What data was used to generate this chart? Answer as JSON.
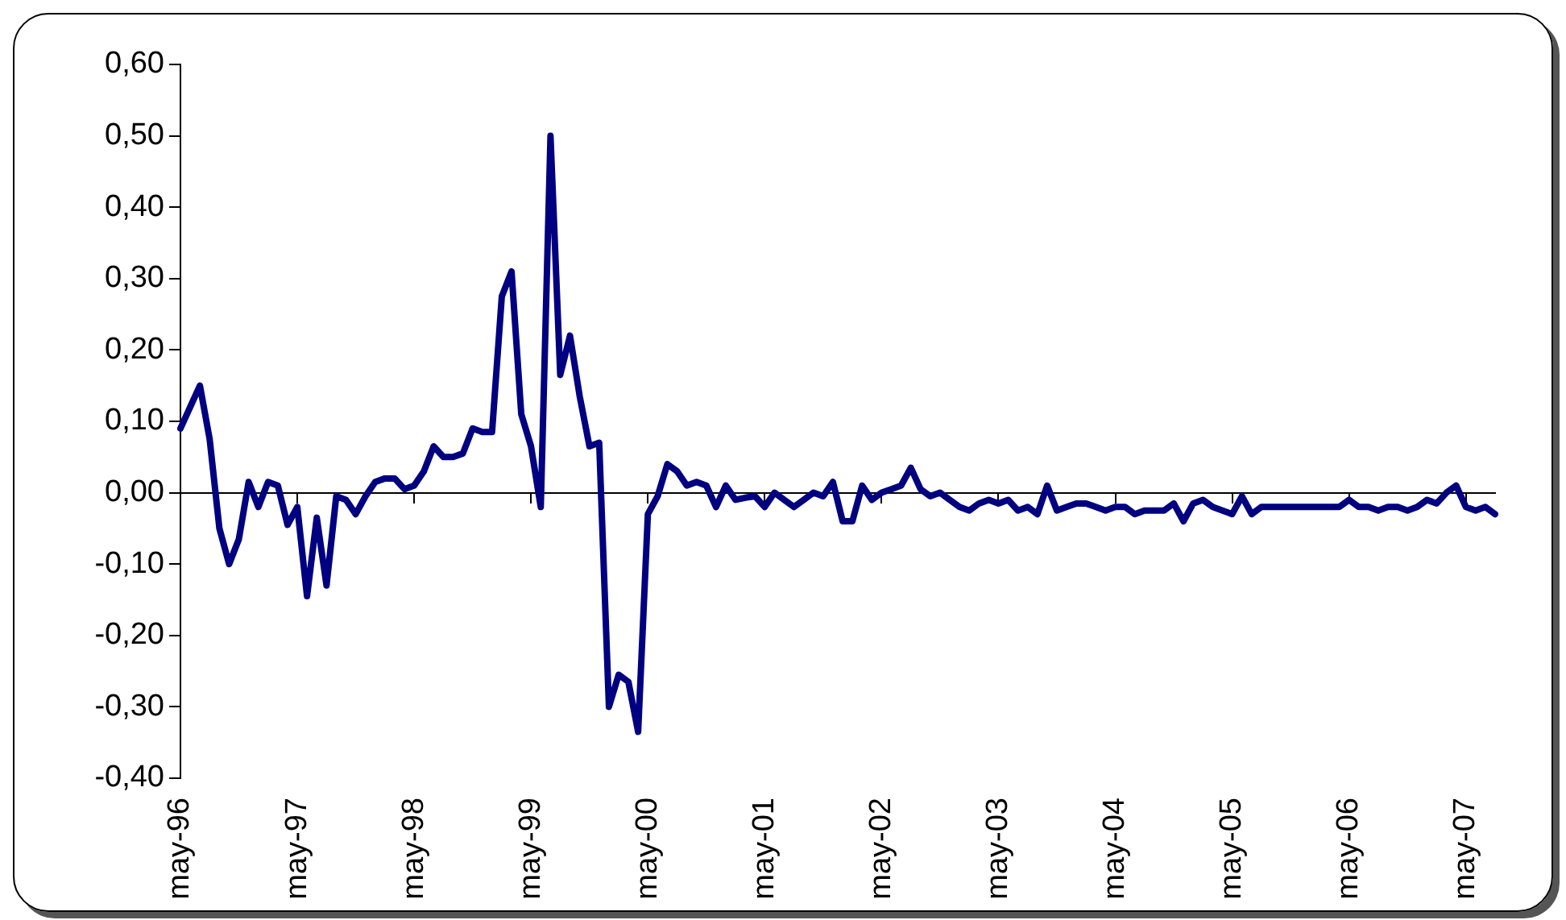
{
  "chart_data": {
    "type": "line",
    "categories": [
      "may-96",
      null,
      null,
      null,
      null,
      null,
      null,
      null,
      null,
      null,
      null,
      null,
      "may-97",
      null,
      null,
      null,
      null,
      null,
      null,
      null,
      null,
      null,
      null,
      null,
      "may-98",
      null,
      null,
      null,
      null,
      null,
      null,
      null,
      null,
      null,
      null,
      null,
      "may-99",
      null,
      null,
      null,
      null,
      null,
      null,
      null,
      null,
      null,
      null,
      null,
      "may-00",
      null,
      null,
      null,
      null,
      null,
      null,
      null,
      null,
      null,
      null,
      null,
      "may-01",
      null,
      null,
      null,
      null,
      null,
      null,
      null,
      null,
      null,
      null,
      null,
      "may-02",
      null,
      null,
      null,
      null,
      null,
      null,
      null,
      null,
      null,
      null,
      null,
      "may-03",
      null,
      null,
      null,
      null,
      null,
      null,
      null,
      null,
      null,
      null,
      null,
      "may-04",
      null,
      null,
      null,
      null,
      null,
      null,
      null,
      null,
      null,
      null,
      null,
      "may-05",
      null,
      null,
      null,
      null,
      null,
      null,
      null,
      null,
      null,
      null,
      null,
      "may-06",
      null,
      null,
      null,
      null,
      null,
      null,
      null,
      null,
      null,
      null,
      null,
      "may-07",
      null,
      null,
      null
    ],
    "series": [
      {
        "color": "#000080",
        "values": [
          0.09,
          0.12,
          0.15,
          0.075,
          -0.05,
          -0.1,
          -0.065,
          0.015,
          -0.02,
          0.015,
          0.01,
          -0.045,
          -0.02,
          -0.145,
          -0.035,
          -0.13,
          -0.005,
          -0.01,
          -0.03,
          -0.005,
          0.015,
          0.02,
          0.02,
          0.005,
          0.01,
          0.03,
          0.065,
          0.05,
          0.05,
          0.055,
          0.09,
          0.085,
          0.085,
          0.275,
          0.31,
          0.11,
          0.065,
          -0.02,
          0.5,
          0.165,
          0.22,
          0.135,
          0.065,
          0.07,
          -0.3,
          -0.255,
          -0.265,
          -0.335,
          -0.03,
          -0.005,
          0.04,
          0.03,
          0.01,
          0.015,
          0.01,
          -0.02,
          0.01,
          -0.01,
          -0.007,
          -0.005,
          -0.02,
          0,
          -0.01,
          -0.02,
          -0.01,
          0,
          -0.005,
          0.015,
          -0.04,
          -0.04,
          0.01,
          -0.01,
          0,
          0.005,
          0.01,
          0.035,
          0.005,
          -0.005,
          0,
          -0.01,
          -0.02,
          -0.025,
          -0.015,
          -0.01,
          -0.015,
          -0.01,
          -0.025,
          -0.02,
          -0.03,
          0.01,
          -0.025,
          -0.02,
          -0.015,
          -0.015,
          -0.02,
          -0.025,
          -0.02,
          -0.02,
          -0.03,
          -0.025,
          -0.025,
          -0.025,
          -0.015,
          -0.04,
          -0.015,
          -0.01,
          -0.02,
          -0.025,
          -0.03,
          -0.005,
          -0.03,
          -0.02,
          -0.02,
          -0.02,
          -0.02,
          -0.02,
          -0.02,
          -0.02,
          -0.02,
          -0.02,
          -0.01,
          -0.02,
          -0.02,
          -0.025,
          -0.02,
          -0.02,
          -0.025,
          -0.02,
          -0.01,
          -0.015,
          0,
          0.01,
          -0.02,
          -0.025,
          -0.02,
          -0.03
        ]
      }
    ],
    "ylim": [
      -0.4,
      0.6
    ],
    "yticks": [
      {
        "value": -0.4,
        "label": "-0,40"
      },
      {
        "value": -0.3,
        "label": "-0,30"
      },
      {
        "value": -0.2,
        "label": "-0,20"
      },
      {
        "value": -0.1,
        "label": "-0,10"
      },
      {
        "value": 0,
        "label": "0,00"
      },
      {
        "value": 0.1,
        "label": "0,10"
      },
      {
        "value": 0.2,
        "label": "0,20"
      },
      {
        "value": 0.3,
        "label": "0,30"
      },
      {
        "value": 0.4,
        "label": "0,40"
      },
      {
        "value": 0.5,
        "label": "0,50"
      },
      {
        "value": 0.6,
        "label": "0,60"
      }
    ],
    "legend": false,
    "marker": "none",
    "line_style": "solid"
  }
}
